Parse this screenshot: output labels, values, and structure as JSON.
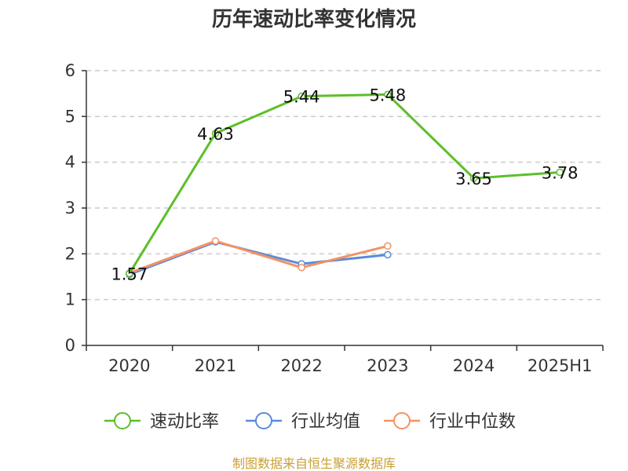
{
  "chart_data": {
    "type": "line",
    "title": "历年速动比率变化情况",
    "categories": [
      "2020",
      "2021",
      "2022",
      "2023",
      "2024",
      "2025H1"
    ],
    "ylim": [
      0,
      6
    ],
    "yticks": [
      0,
      1,
      2,
      3,
      4,
      5,
      6
    ],
    "grid": true,
    "legend_position": "bottom",
    "series": [
      {
        "name": "速动比率",
        "color": "#5cbf2a",
        "values": [
          1.57,
          4.63,
          5.44,
          5.48,
          3.65,
          3.78
        ],
        "labels": true
      },
      {
        "name": "行业均值",
        "color": "#5b8bd9",
        "values": [
          1.55,
          2.26,
          1.78,
          1.98,
          null,
          null
        ],
        "labels": false
      },
      {
        "name": "行业中位数",
        "color": "#f39263",
        "values": [
          1.58,
          2.28,
          1.7,
          2.17,
          null,
          null
        ],
        "labels": false
      }
    ]
  },
  "source_text": "制图数据来自恒生聚源数据库"
}
